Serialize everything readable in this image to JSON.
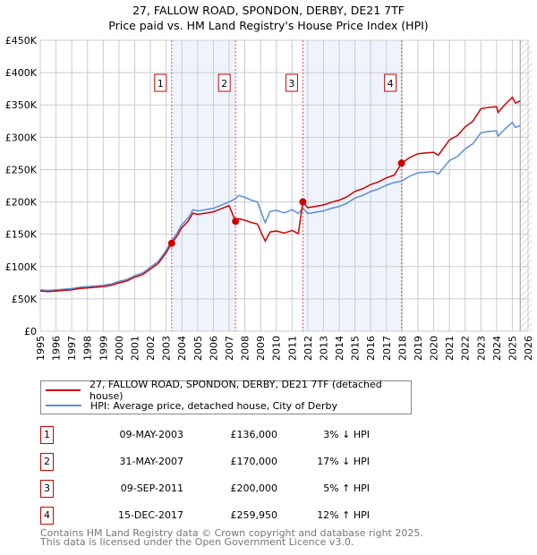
{
  "chart_data": {
    "type": "line",
    "title": "27, FALLOW ROAD, SPONDON, DERBY, DE21 7TF",
    "subtitle": "Price paid vs. HM Land Registry's House Price Index (HPI)",
    "xlim": [
      1995,
      2026
    ],
    "ylim": [
      0,
      450000
    ],
    "yticks": [
      0,
      50000,
      100000,
      150000,
      200000,
      250000,
      300000,
      350000,
      400000,
      450000
    ],
    "ytick_labels": [
      "£0",
      "£50K",
      "£100K",
      "£150K",
      "£200K",
      "£250K",
      "£300K",
      "£350K",
      "£400K",
      "£450K"
    ],
    "xtick_labels": [
      "1995",
      "1996",
      "1997",
      "1998",
      "1999",
      "2000",
      "2001",
      "2002",
      "2003",
      "2004",
      "2005",
      "2006",
      "2007",
      "2008",
      "2009",
      "2010",
      "2011",
      "2012",
      "2013",
      "2014",
      "2015",
      "2016",
      "2017",
      "2018",
      "2019",
      "2020",
      "2021",
      "2022",
      "2023",
      "2024",
      "2025",
      "2026"
    ],
    "grid": true,
    "forecast_start": 2025.5,
    "series": [
      {
        "name": "27, FALLOW ROAD, SPONDON, DERBY, DE21 7TF (detached house)",
        "color": "#cc0000"
      },
      {
        "name": "HPI: Average price, detached house, City of Derby",
        "color": "#5b8fd6",
        "x": [
          1995,
          1995.5,
          1996,
          1996.5,
          1997,
          1997.5,
          1998,
          1998.5,
          1999,
          1999.5,
          2000,
          2000.5,
          2001,
          2001.5,
          2002,
          2002.5,
          2003,
          2003.35,
          2003.7,
          2004,
          2004.4,
          2004.7,
          2005,
          2005.5,
          2006,
          2006.5,
          2007,
          2007.41,
          2007.6,
          2008,
          2008.5,
          2008.8,
          2009.1,
          2009.3,
          2009.6,
          2010,
          2010.5,
          2011,
          2011.4,
          2011.69,
          2012,
          2012.5,
          2013,
          2013.5,
          2014,
          2014.5,
          2015,
          2015.5,
          2016,
          2016.5,
          2017,
          2017.5,
          2017.96,
          2018.5,
          2019,
          2019.5,
          2020,
          2020.3,
          2020.7,
          2021,
          2021.5,
          2022,
          2022.5,
          2023,
          2023.5,
          2024,
          2024.1,
          2024.5,
          2025,
          2025.2,
          2025.5
        ],
        "y": [
          64000,
          63000,
          64000,
          65000,
          66000,
          68000,
          69000,
          70000,
          71000,
          73000,
          77000,
          80000,
          86000,
          90000,
          99000,
          108000,
          125000,
          140000,
          152000,
          165000,
          175000,
          188000,
          186000,
          188000,
          190000,
          195000,
          200000,
          205000,
          210000,
          207000,
          202000,
          200000,
          180000,
          168000,
          185000,
          187000,
          183000,
          188000,
          182000,
          190500,
          182000,
          184000,
          186000,
          190000,
          193000,
          198000,
          206000,
          210000,
          216000,
          220000,
          226000,
          230000,
          232000,
          240000,
          245000,
          246000,
          247000,
          243000,
          255000,
          264000,
          270000,
          282000,
          290000,
          307000,
          309000,
          310000,
          302000,
          312000,
          323000,
          315000,
          318000
        ]
      }
    ],
    "sales": [
      {
        "label": "1",
        "date": "09-MAY-2003",
        "x": 2003.35,
        "price": 136000,
        "price_label": "£136,000",
        "hpi_label": "3% ↓ HPI"
      },
      {
        "label": "2",
        "date": "31-MAY-2007",
        "x": 2007.41,
        "price": 170000,
        "price_label": "£170,000",
        "hpi_label": "17% ↓ HPI"
      },
      {
        "label": "3",
        "date": "09-SEP-2011",
        "x": 2011.69,
        "price": 200000,
        "price_label": "£200,000",
        "hpi_label": "5% ↑ HPI"
      },
      {
        "label": "4",
        "date": "15-DEC-2017",
        "x": 2017.96,
        "price": 259950,
        "price_label": "£259,950",
        "hpi_label": "12% ↑ HPI"
      }
    ]
  },
  "footer": {
    "line1": "Contains HM Land Registry data © Crown copyright and database right 2025.",
    "line2": "This data is licensed under the Open Government Licence v3.0."
  }
}
